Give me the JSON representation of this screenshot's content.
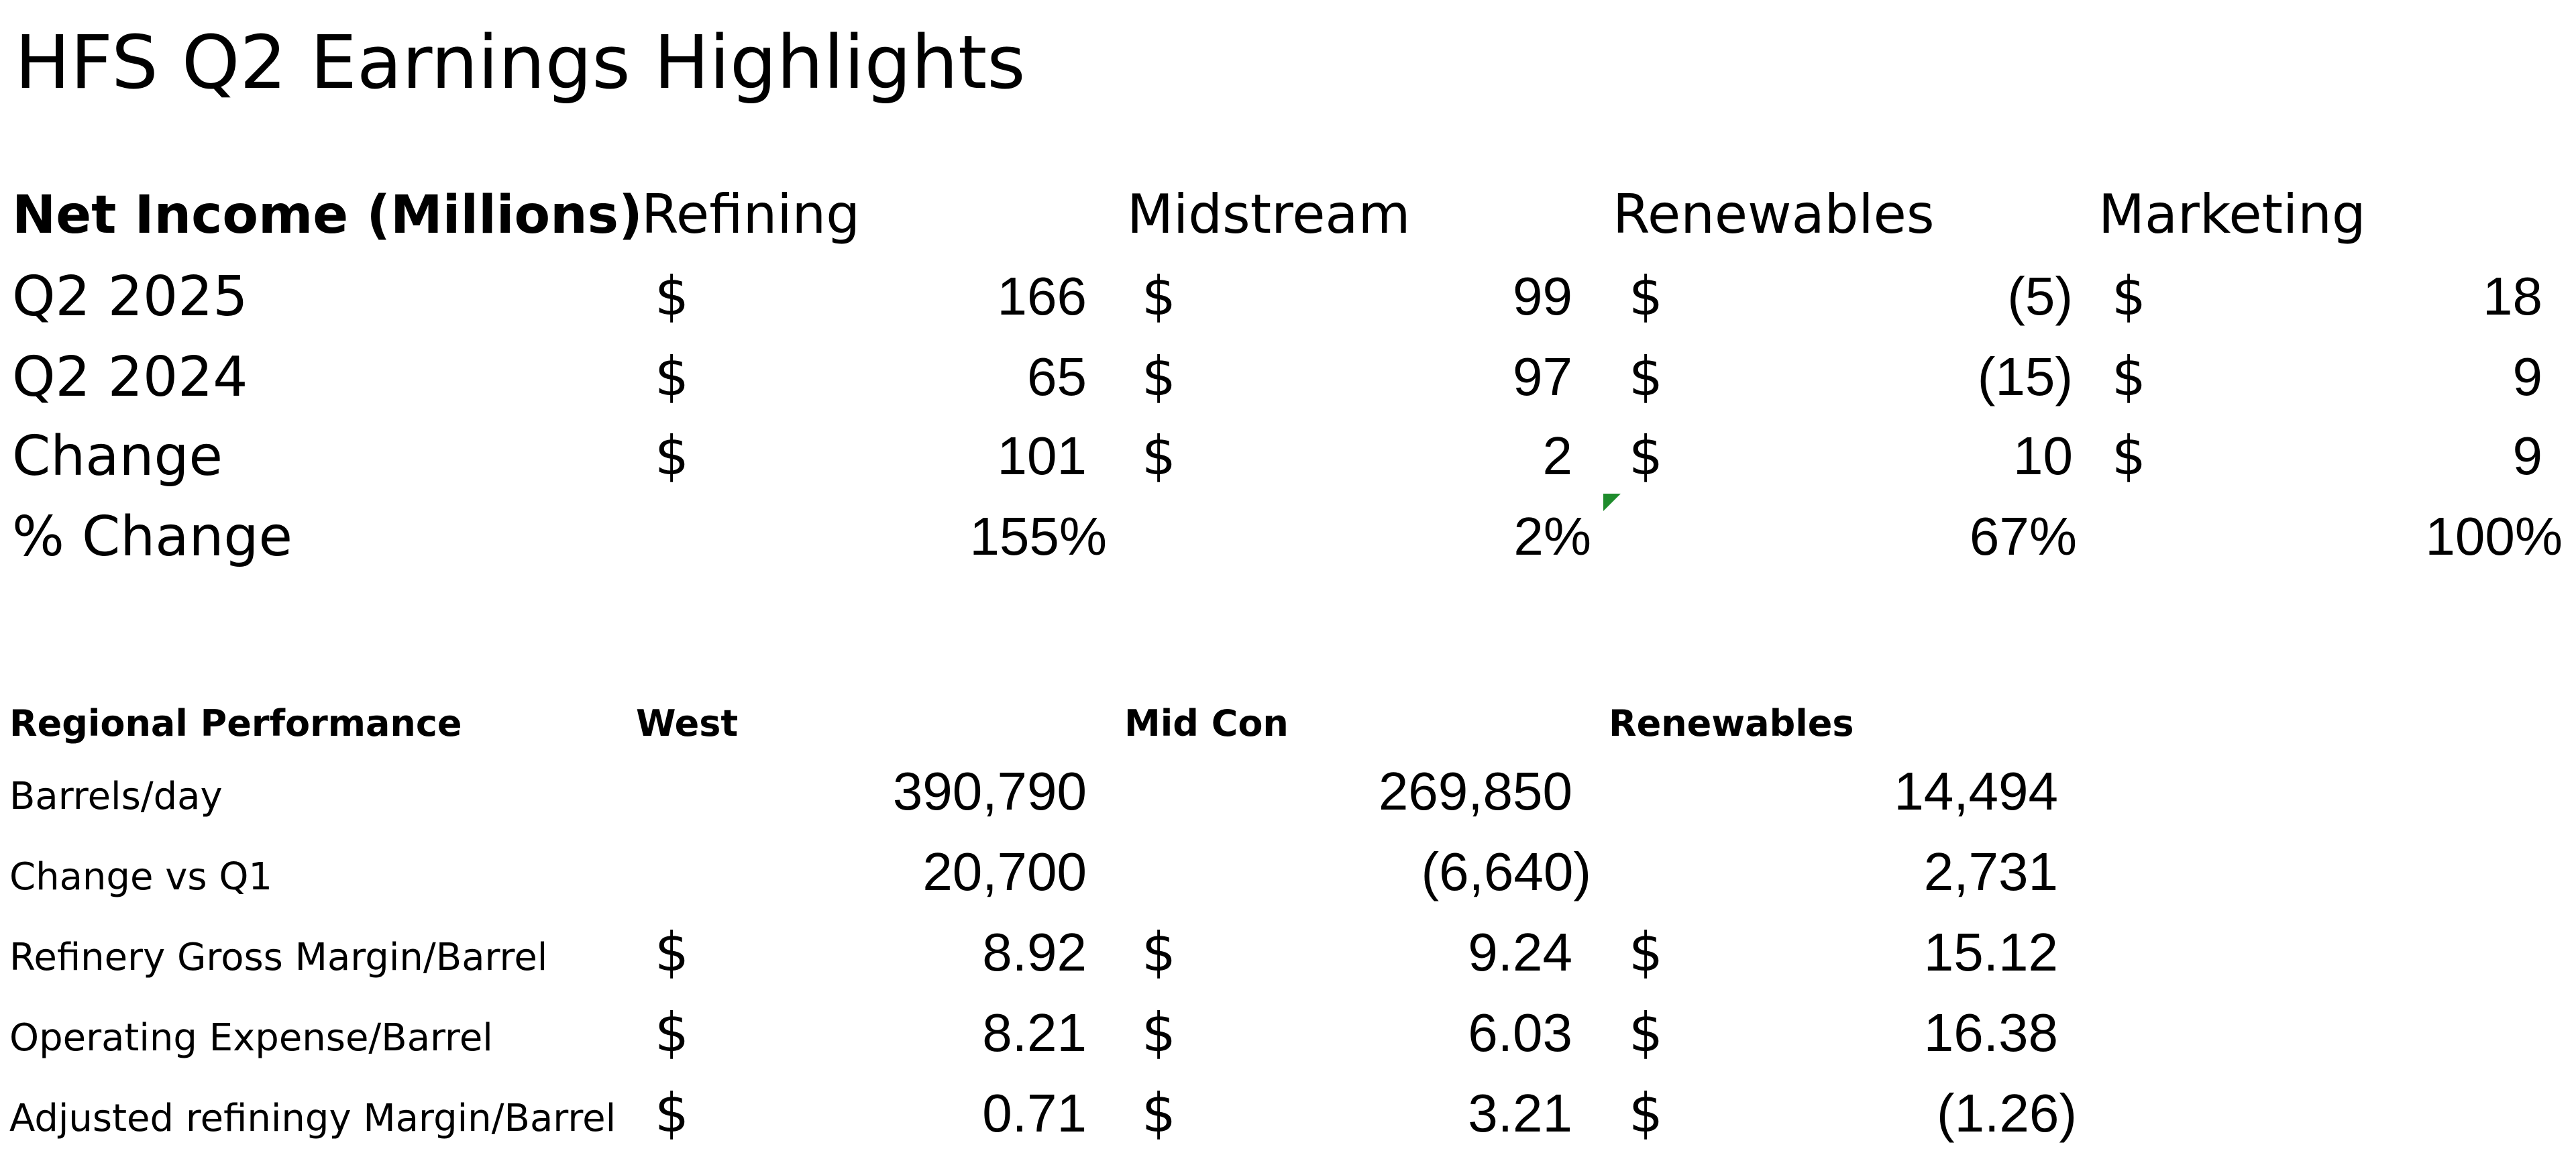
{
  "title": "HFS Q2 Earnings Highlights",
  "net_income": {
    "header_label": "Net Income (Millions)",
    "columns": [
      "Refining",
      "Midstream",
      "Renewables",
      "Marketing"
    ],
    "currency_symbol": "$",
    "rows": [
      {
        "label": "Q2 2025",
        "values": [
          "166",
          "99",
          "(5)",
          "18"
        ]
      },
      {
        "label": "Q2 2024",
        "values": [
          "65",
          "97",
          "(15)",
          "9"
        ]
      },
      {
        "label": "Change",
        "values": [
          "101",
          "2",
          "10",
          "9"
        ]
      }
    ],
    "pct_row": {
      "label": "% Change",
      "values": [
        "155%",
        "2%",
        "67%",
        "100%"
      ]
    }
  },
  "regional": {
    "header_label": "Regional Performance",
    "columns": [
      "West",
      "Mid Con",
      "Renewables"
    ],
    "currency_symbol": "$",
    "rows": [
      {
        "label": "Barrels/day",
        "values": [
          "390,790",
          "269,850",
          "14,494"
        ]
      },
      {
        "label": "Change vs Q1",
        "values": [
          "20,700",
          "(6,640)",
          "2,731"
        ]
      },
      {
        "label": "Refinery Gross Margin/Barrel",
        "values": [
          "8.92",
          "9.24",
          "15.12"
        ]
      },
      {
        "label": "Operating Expense/Barrel",
        "values": [
          "8.21",
          "6.03",
          "16.38"
        ]
      },
      {
        "label": "Adjusted refiningy Margin/Barrel",
        "values": [
          "0.71",
          "3.21",
          "(1.26)"
        ]
      }
    ]
  },
  "comment_indicator_color": "#1e8c2c"
}
